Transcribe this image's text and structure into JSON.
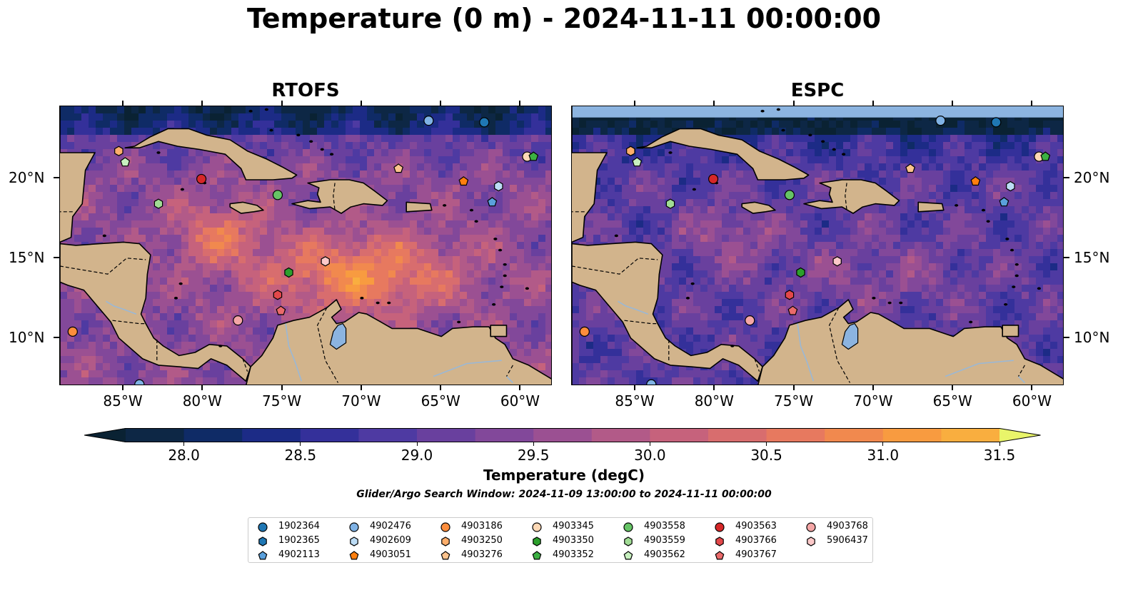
{
  "title": "Temperature (0 m) - 2024-11-11 00:00:00",
  "panels": [
    {
      "title": "RTOFS",
      "variant": "warm"
    },
    {
      "title": "ESPC",
      "variant": "cool"
    }
  ],
  "map": {
    "lon_range": [
      -89,
      -58
    ],
    "lat_range": [
      7,
      24.5
    ],
    "lon_ticks": [
      {
        "value": -85,
        "label": "85°W"
      },
      {
        "value": -80,
        "label": "80°W"
      },
      {
        "value": -75,
        "label": "75°W"
      },
      {
        "value": -70,
        "label": "70°W"
      },
      {
        "value": -65,
        "label": "65°W"
      },
      {
        "value": -60,
        "label": "60°W"
      }
    ],
    "lat_ticks": [
      {
        "value": 20,
        "label": "20°N"
      },
      {
        "value": 15,
        "label": "15°N"
      },
      {
        "value": 10,
        "label": "10°N"
      }
    ],
    "land_color": "#d2b48c",
    "lake_color": "#8cb4e0",
    "river_color": "#9ab8d6"
  },
  "colorbar": {
    "min": 27.5,
    "max": 31.5,
    "step": 0.25,
    "ticks": [
      {
        "value": 28.0,
        "label": "28.0"
      },
      {
        "value": 28.5,
        "label": "28.5"
      },
      {
        "value": 29.0,
        "label": "29.0"
      },
      {
        "value": 29.5,
        "label": "29.5"
      },
      {
        "value": 30.0,
        "label": "30.0"
      },
      {
        "value": 30.5,
        "label": "30.5"
      },
      {
        "value": 31.0,
        "label": "31.0"
      },
      {
        "value": 31.5,
        "label": "31.5"
      }
    ],
    "colors": [
      "#0a2233",
      "#0d2745",
      "#0f2b66",
      "#1c2b86",
      "#34309a",
      "#4e3aa2",
      "#69409e",
      "#82489a",
      "#9b5092",
      "#b25a88",
      "#c6627c",
      "#d86d6e",
      "#e7795f",
      "#f1894e",
      "#f89b40",
      "#f9ae3f",
      "#f7c84a",
      "#e9f56a"
    ],
    "label": "Temperature (degC)"
  },
  "search_window": "Glider/Argo Search Window: 2024-11-09 13:00:00 to 2024-11-11 00:00:00",
  "legend": [
    {
      "id": "1902364",
      "marker": "circle",
      "color": "#1f77b4"
    },
    {
      "id": "1902365",
      "marker": "hexagon",
      "color": "#1f77b4"
    },
    {
      "id": "4902113",
      "marker": "pentagon",
      "color": "#5aa0dc"
    },
    {
      "id": "4902476",
      "marker": "circle",
      "color": "#7fb2e5"
    },
    {
      "id": "4902609",
      "marker": "hexagon",
      "color": "#bcdcf5"
    },
    {
      "id": "4903051",
      "marker": "pentagon",
      "color": "#ff7f0e"
    },
    {
      "id": "4903186",
      "marker": "circle",
      "color": "#fd8d3c"
    },
    {
      "id": "4903250",
      "marker": "hexagon",
      "color": "#fdae6b"
    },
    {
      "id": "4903276",
      "marker": "pentagon",
      "color": "#fdc38d"
    },
    {
      "id": "4903345",
      "marker": "circle",
      "color": "#fdd8b5"
    },
    {
      "id": "4903350",
      "marker": "hexagon",
      "color": "#2ca02c"
    },
    {
      "id": "4903352",
      "marker": "pentagon",
      "color": "#3cb043"
    },
    {
      "id": "4903558",
      "marker": "circle",
      "color": "#66c466"
    },
    {
      "id": "4903559",
      "marker": "hexagon",
      "color": "#a1dc95"
    },
    {
      "id": "4903562",
      "marker": "pentagon",
      "color": "#c7f0bf"
    },
    {
      "id": "4903563",
      "marker": "circle",
      "color": "#d62728"
    },
    {
      "id": "4903766",
      "marker": "hexagon",
      "color": "#e3484a"
    },
    {
      "id": "4903767",
      "marker": "pentagon",
      "color": "#ea6a6a"
    },
    {
      "id": "4903768",
      "marker": "circle",
      "color": "#f4a6a6"
    },
    {
      "id": "5906437",
      "marker": "hexagon",
      "color": "#fcc9c9"
    }
  ],
  "floats": [
    {
      "id": "1902364",
      "lon": -62.3,
      "lat": 23.5
    },
    {
      "id": "4902476",
      "lon": -65.8,
      "lat": 23.6
    },
    {
      "id": "4903250",
      "lon": -85.3,
      "lat": 21.7
    },
    {
      "id": "4903562",
      "lon": -84.9,
      "lat": 21.0
    },
    {
      "id": "4903563",
      "lon": -80.1,
      "lat": 19.95
    },
    {
      "id": "4903558",
      "lon": -75.3,
      "lat": 18.95
    },
    {
      "id": "4903559",
      "lon": -82.8,
      "lat": 18.4
    },
    {
      "id": "4903276",
      "lon": -67.7,
      "lat": 20.6
    },
    {
      "id": "4903051",
      "lon": -63.6,
      "lat": 19.8
    },
    {
      "id": "4902609",
      "lon": -61.4,
      "lat": 19.5
    },
    {
      "id": "4902113",
      "lon": -61.8,
      "lat": 18.5
    },
    {
      "id": "4903345",
      "lon": -59.6,
      "lat": 21.35
    },
    {
      "id": "4903352",
      "lon": -59.2,
      "lat": 21.35
    },
    {
      "id": "5906437",
      "lon": -72.3,
      "lat": 14.8
    },
    {
      "id": "4903350",
      "lon": -74.6,
      "lat": 14.1
    },
    {
      "id": "4903766",
      "lon": -75.3,
      "lat": 12.7
    },
    {
      "id": "4903767",
      "lon": -75.1,
      "lat": 11.7
    },
    {
      "id": "4903768",
      "lon": -77.8,
      "lat": 11.1
    },
    {
      "id": "4903186",
      "lon": -88.2,
      "lat": 10.4
    },
    {
      "id": "4902476",
      "lon": -84.0,
      "lat": 7.1
    }
  ]
}
